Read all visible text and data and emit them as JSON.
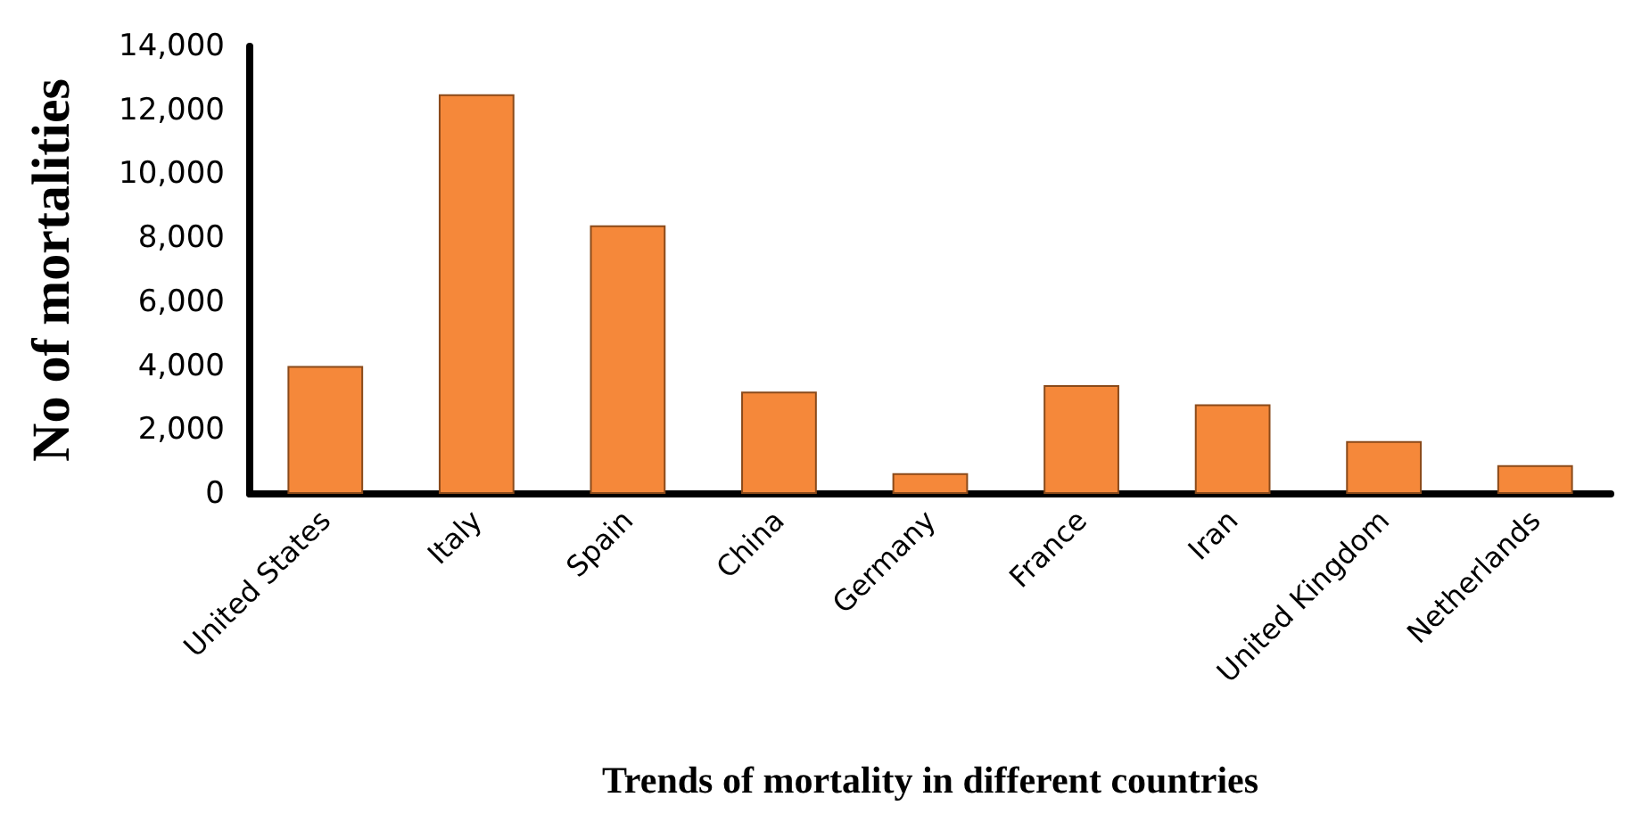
{
  "chart_data": {
    "type": "bar",
    "xlabel": "Trends of mortality in different countries",
    "ylabel": "No of mortalities",
    "categories": [
      "United States",
      "Italy",
      "Spain",
      "China",
      "Germany",
      "France",
      "Iran",
      "United Kingdom",
      "Netherlands"
    ],
    "values": [
      4000,
      12500,
      8400,
      3200,
      650,
      3400,
      2800,
      1650,
      900
    ],
    "color": "#f5883a",
    "ylim": [
      0,
      14000
    ],
    "yticks": [
      0,
      {
        "value": 2000,
        "label": "2,000"
      },
      {
        "value": 4000,
        "label": "4,000"
      },
      {
        "value": 6000,
        "label": "6,000"
      },
      {
        "value": 8000,
        "label": "8,000"
      },
      {
        "value": 10000,
        "label": "10,000"
      },
      {
        "value": 12000,
        "label": "12,000"
      },
      {
        "value": 14000,
        "label": "14,000"
      }
    ],
    "grid": false
  }
}
